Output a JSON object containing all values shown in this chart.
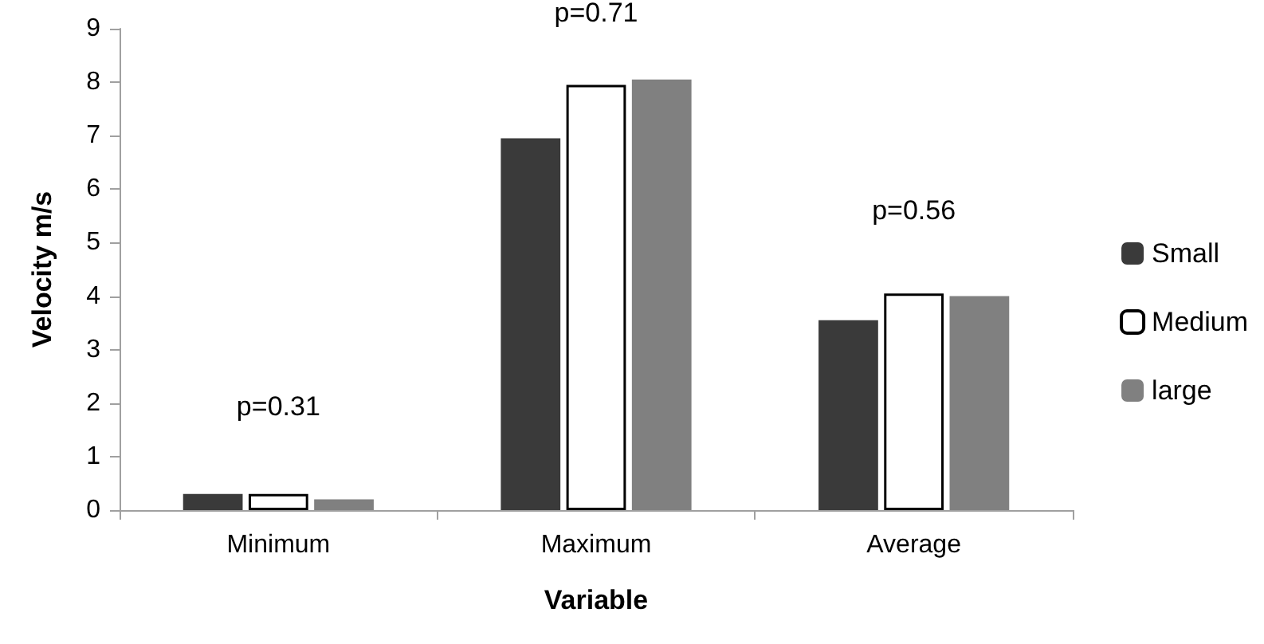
{
  "chart_data": {
    "type": "bar",
    "xlabel": "Variable",
    "ylabel": "Velocity m/s",
    "categories": [
      "Minimum",
      "Maximum",
      "Average"
    ],
    "series": [
      {
        "name": "Small",
        "color": "#3a3a3a",
        "values": [
          0.3,
          6.95,
          3.55
        ]
      },
      {
        "name": "Medium",
        "color": "#ffffff",
        "values": [
          0.3,
          7.95,
          4.05
        ]
      },
      {
        "name": "large",
        "color": "#808080",
        "values": [
          0.2,
          8.05,
          4.0
        ]
      }
    ],
    "ylim": [
      0,
      9
    ],
    "yticks": [
      0,
      1,
      2,
      3,
      4,
      5,
      6,
      7,
      8,
      9
    ],
    "grid": false,
    "legend": "right",
    "annotations": [
      "p=0.31",
      "p=0.71",
      "p=0.56"
    ]
  }
}
